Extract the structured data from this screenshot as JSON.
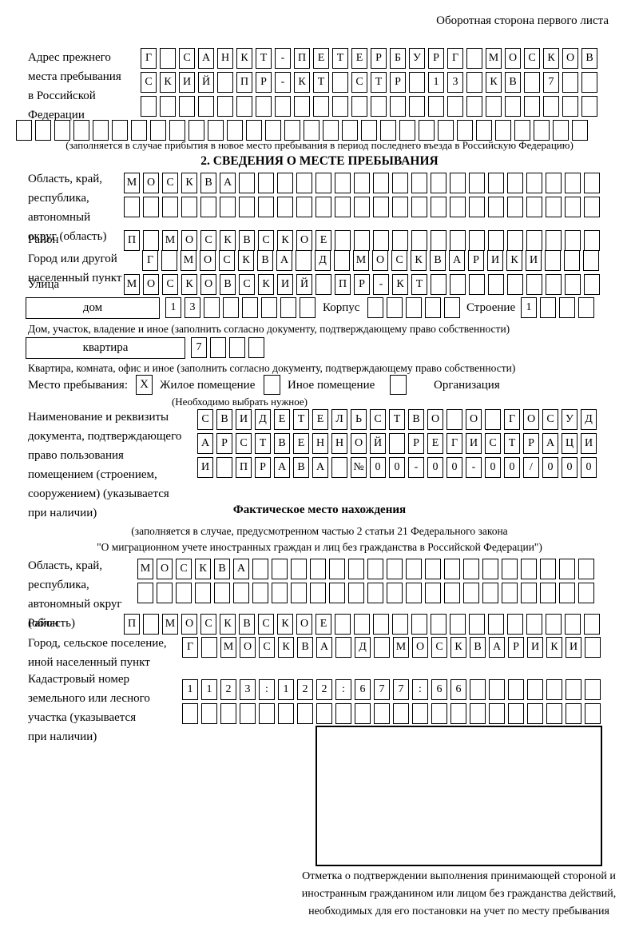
{
  "page": {
    "header_note": "Оборотная сторона первого листа"
  },
  "prev_address": {
    "label": "Адрес прежнего\nместа пребывания\nв Российской\nФедерации",
    "row1": "Г САНКТ-ПЕТЕРБУРГ МОСКОВ",
    "row2": "СКИЙ ПР-КТ СТР 13 КВ 7  ",
    "row3": "                        ",
    "row_full": "                              ",
    "note": "(заполняется в случае прибытия в новое место пребывания в период последнего въезда в Российскую Федерацию)"
  },
  "section2": {
    "title": "2. СВЕДЕНИЯ О МЕСТЕ ПРЕБЫВАНИЯ",
    "region": {
      "label": "Область, край,\nреспублика,\nавтономный\nокруг (область)",
      "row1": "МОСКВА                   ",
      "row2": "                         "
    },
    "district": {
      "label": "Район",
      "row": "П МОСКВСКОЕ              "
    },
    "city": {
      "label": "Город или другой\nнаселенный пункт",
      "row": "Г МОСКВА Д МОСКВАРИКИ   "
    },
    "street": {
      "label": "Улица",
      "row": "МОСКОВСКИЙ ПР-КТ         "
    },
    "house": {
      "box_label": "дом",
      "cells": "13      ",
      "korpus_label": "Корпус",
      "korpus_cells": "     ",
      "stroenie_label": "Строение",
      "stroenie_cells": "1   ",
      "note": "Дом, участок, владение и иное (заполнить согласно документу, подтверждающему право собственности)"
    },
    "apartment": {
      "box_label": "квартира",
      "cells": "7   ",
      "note": "Квартира, комната, офис и иное (заполнить согласно документу, подтверждающему право собственности)"
    },
    "stay_type": {
      "label": "Место пребывания:",
      "checkbox1": "X",
      "option1": "Жилое помещение",
      "checkbox2": "",
      "option2": "Иное помещение",
      "checkbox3": "",
      "option3": "Организация",
      "note": "(Необходимо выбрать нужное)"
    },
    "document": {
      "label": "Наименование и реквизиты\nдокумента, подтверждающего\nправо пользования\nпомещением (строением,\nсооружением) (указывается\nпри наличии)",
      "row1": "СВИДЕТЕЛЬСТВО О ГОСУД",
      "row2": "АРСТВЕННОЙ РЕГИСТРАЦИ",
      "row3": "И ПРАВА №00-00-00/000"
    }
  },
  "actual_location": {
    "title": "Фактическое место нахождения",
    "note1": "(заполняется в случае, предусмотренном частью 2 статьи 21 Федерального закона",
    "note2": "\"О миграционном учете иностранных граждан и лиц без гражданства в Российской Федерации\")",
    "region": {
      "label": "Область, край,\nреспублика,\nавтономный округ\n(область)",
      "row1": "МОСКВА                  ",
      "row2": "                        "
    },
    "district": {
      "label": "Район",
      "row": "П МОСКВСКОЕ              "
    },
    "city": {
      "label": "Город, сельское поселение,\nиной населенный пункт",
      "row": "Г МОСКВА Д МОСКВАРИКИ "
    },
    "cadastral": {
      "label": "Кадастровый номер\nземельного или лесного\nучастка (указывается\nпри наличии)",
      "row1": "1123:122:677:66       ",
      "row2": "                      "
    }
  },
  "stamp": {
    "caption": "Отметка о подтверждении выполнения принимающей стороной и иностранным гражданином или лицом без гражданства действий, необходимых для его постановки на учет по месту пребывания"
  }
}
